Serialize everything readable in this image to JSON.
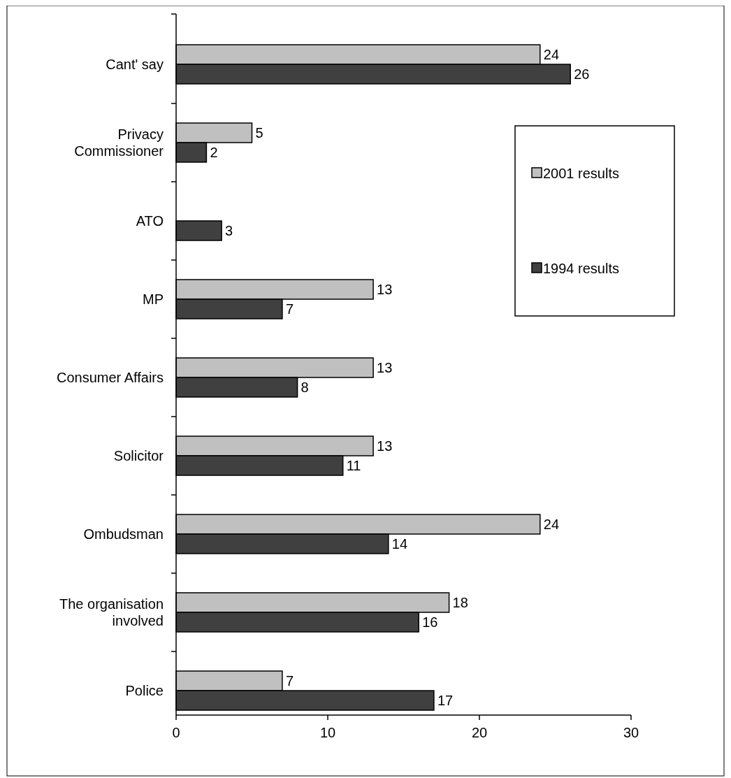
{
  "chart_data": {
    "type": "bar",
    "orientation": "horizontal",
    "categories": [
      "Cant' say",
      "Privacy Commissioner",
      "ATO",
      "MP",
      "Consumer Affairs",
      "Solicitor",
      "Ombudsman",
      "The organisation involved",
      "Police"
    ],
    "series": [
      {
        "name": "2001 results",
        "color": "#c0c0c0",
        "values": [
          24,
          5,
          null,
          13,
          13,
          13,
          24,
          18,
          7
        ]
      },
      {
        "name": "1994 results",
        "color": "#404040",
        "values": [
          26,
          2,
          3,
          7,
          8,
          11,
          14,
          16,
          17
        ]
      }
    ],
    "xlim": [
      0,
      30
    ],
    "xticks": [
      0,
      10,
      20,
      30
    ],
    "data_labels": true,
    "legend": "top right",
    "grid": false
  }
}
